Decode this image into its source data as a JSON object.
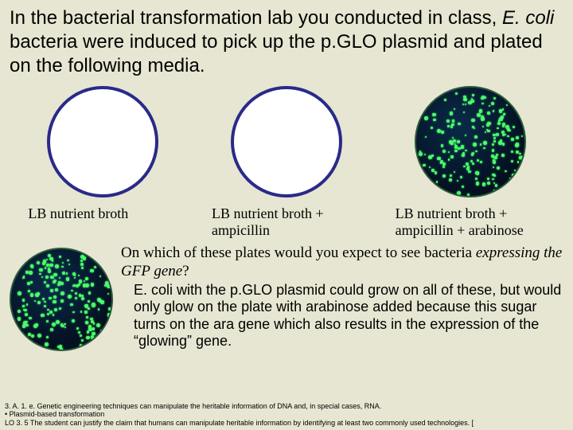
{
  "title_parts": {
    "pre": "In the bacterial transformation lab you conducted in class, ",
    "em": "E. coli",
    "post": " bacteria were induced to pick up the p.GLO plasmid and plated on the following media."
  },
  "plates": [
    {
      "label": "LB nutrient broth",
      "type": "empty"
    },
    {
      "label": "LB nutrient broth + ampicillin",
      "type": "empty"
    },
    {
      "label": "LB nutrient broth + ampicillin + arabinose",
      "type": "glow"
    }
  ],
  "question_parts": {
    "pre": "On which of these plates would you expect to see bacteria ",
    "em": "expressing the GFP gene",
    "post": "?"
  },
  "answer": "E. coli with the p.GLO plasmid could grow on all of these, but would only glow on the plate with arabinose added because this sugar turns on the ara gene which also results in the expression of the “glowing” gene.",
  "footer": {
    "line1": "3. A. 1. e. Genetic engineering techniques can manipulate the heritable information of DNA and, in special cases, RNA.",
    "line2": "• Plasmid-based transformation",
    "line3": "LO 3. 5 The student can justify the claim that humans can manipulate heritable information by identifying at least two commonly used technologies. ["
  },
  "glow_dots": {
    "count": 180,
    "size_min": 2,
    "size_max": 5,
    "color": "#4aff6a"
  }
}
